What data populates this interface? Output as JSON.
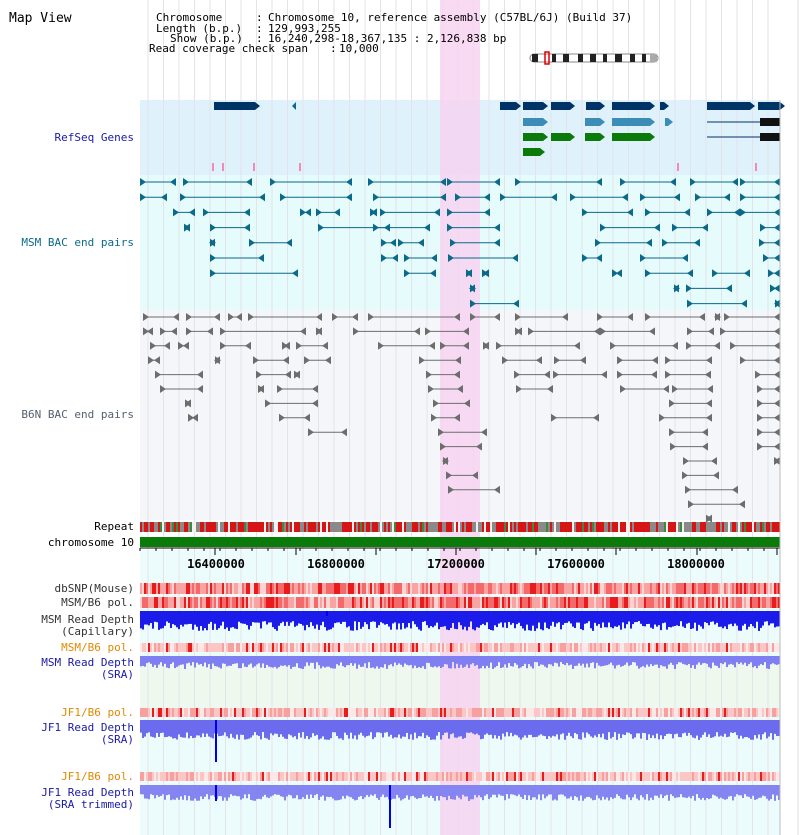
{
  "title": "Map View",
  "info": {
    "chromosome_key": "Chromosome",
    "chromosome_val": "Chromosome 10, reference assembly (C57BL/6J) (Build 37)",
    "length_key": "Length (b.p.)",
    "length_val": "129,993,255",
    "show_key": "Show (b.p.)",
    "show_val": "16,240,298-18,367,135 : 2,126,838 bp",
    "coverage_key": "Read coverage check span",
    "coverage_val": "10,000"
  },
  "tracks": {
    "refseq": "RefSeq Genes",
    "msm_bac": "MSM BAC end pairs",
    "b6n_bac": "B6N BAC end pairs",
    "repeat": "Repeat",
    "chromosome": "chromosome 10",
    "dbsnp": "dbSNP(Mouse)",
    "msm_pol": "MSM/B6 pol.",
    "msm_depth_cap_1": "MSM Read Depth",
    "msm_depth_cap_2": "(Capillary)",
    "msm_pol_2": "MSM/B6 pol.",
    "msm_depth_sra_1": "MSM Read Depth",
    "msm_depth_sra_2": "(SRA)",
    "jf1_pol": "JF1/B6 pol.",
    "jf1_depth_1": "JF1 Read Depth",
    "jf1_depth_2": "(SRA)",
    "jf1_pol_2": "JF1/B6 pol.",
    "jf1_trim_1": "JF1 Read Depth",
    "jf1_trim_2": "(SRA trimmed)"
  },
  "axis_ticks": [
    "16400000",
    "16800000",
    "17200000",
    "17600000",
    "18000000"
  ],
  "colors": {
    "refseq_bg": "#dff2fb",
    "msm_bg": "#e6fbfb",
    "b6n_bg": "#f5f6fa",
    "highlight": "#f7d8f3",
    "chromosome": "#0a7a0a",
    "navy": "#003366",
    "teal": "#0b6a8a",
    "gray": "#666666",
    "orange_label": "#e08a00",
    "blue_label": "#1a1aa8",
    "depth_blue": "#0000ee",
    "depth_light": "#7d7df2"
  }
}
